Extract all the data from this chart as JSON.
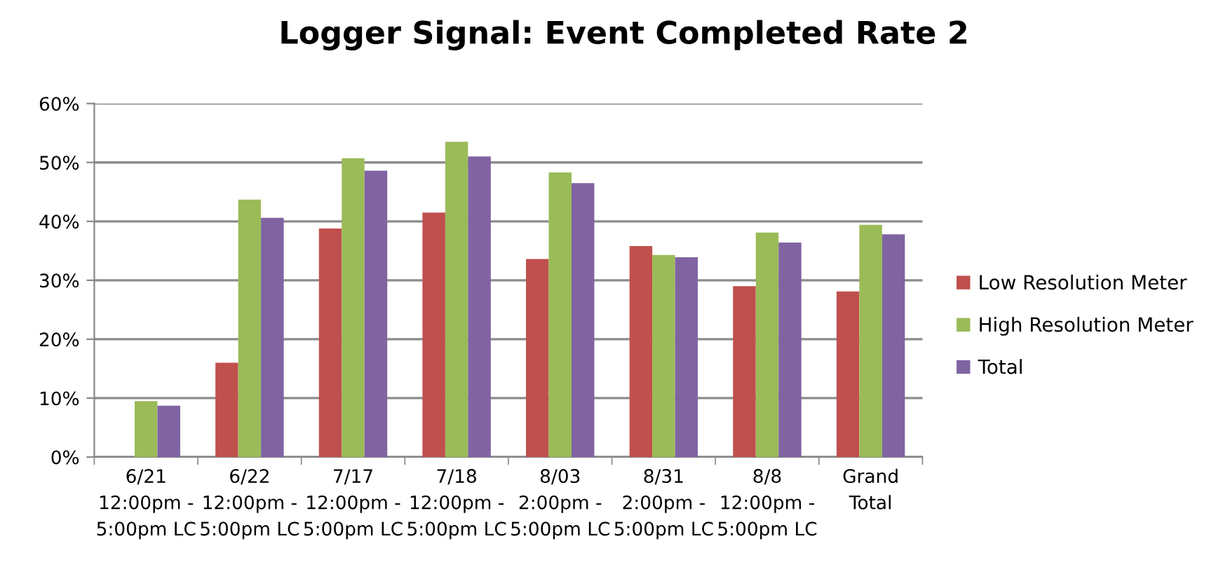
{
  "chart_data": {
    "type": "bar",
    "title": "Logger Signal: Event Completed Rate 2",
    "categories": [
      "6/21\n12:00pm -\n5:00pm LC",
      "6/22\n12:00pm -\n5:00pm LC",
      "7/17\n12:00pm -\n5:00pm LC",
      "7/18\n12:00pm -\n5:00pm LC",
      "8/03\n2:00pm -\n5:00pm LC",
      "8/31\n2:00pm -\n5:00pm LC",
      "8/8\n12:00pm -\n5:00pm LC",
      "Grand\nTotal"
    ],
    "series": [
      {
        "name": "Low Resolution Meter",
        "color": "#c0504d",
        "values": [
          null,
          16.0,
          38.8,
          41.5,
          33.6,
          35.8,
          29.0,
          28.1
        ]
      },
      {
        "name": "High Resolution Meter",
        "color": "#9bbb59",
        "values": [
          9.5,
          43.7,
          50.7,
          53.5,
          48.3,
          34.3,
          38.1,
          39.4
        ]
      },
      {
        "name": "Total",
        "color": "#8064a2",
        "values": [
          8.7,
          40.6,
          48.6,
          51.0,
          46.5,
          33.9,
          36.4,
          37.8
        ]
      }
    ],
    "ylim": [
      0,
      60
    ],
    "yticks": [
      {
        "value": 0,
        "label": "0%"
      },
      {
        "value": 10,
        "label": "10%"
      },
      {
        "value": 20,
        "label": "20%"
      },
      {
        "value": 30,
        "label": "30%"
      },
      {
        "value": 40,
        "label": "40%"
      },
      {
        "value": 50,
        "label": "50%"
      },
      {
        "value": 60,
        "label": "60%"
      }
    ],
    "grid": "y",
    "legend": "right"
  }
}
